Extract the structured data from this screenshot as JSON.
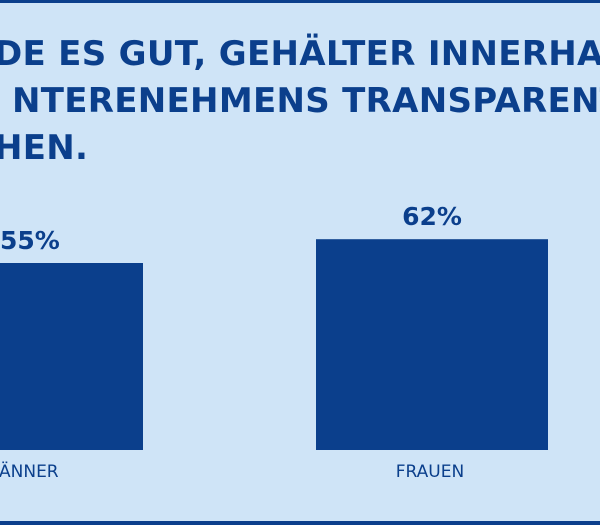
{
  "chart_data": {
    "type": "bar",
    "title_lines": [
      "DE ES GUT, GEHÄLTER INNERHA",
      "NTERENEHMENS TRANSPARENT",
      "HEN."
    ],
    "categories": [
      "ÄNNER",
      "FRAUEN"
    ],
    "values": [
      55,
      62
    ],
    "value_labels": [
      "55%",
      "62%"
    ],
    "ylim": [
      0,
      100
    ],
    "grid": false,
    "legend": "none",
    "colors": {
      "bar": "#0b3f8c",
      "background": "#cfe4f7",
      "text": "#0b3f8c"
    }
  }
}
